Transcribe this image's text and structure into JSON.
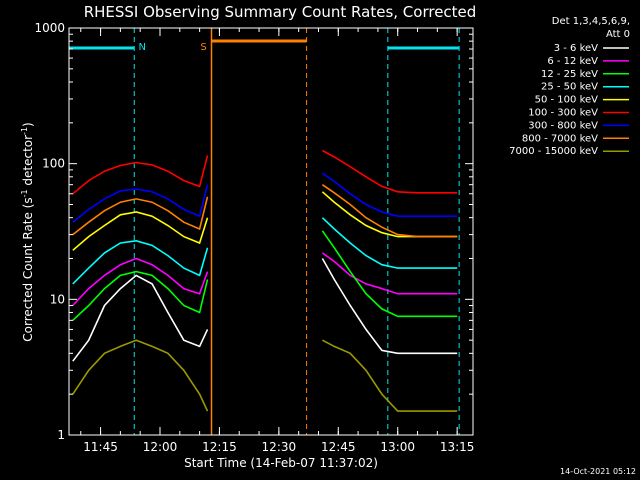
{
  "chart_data": {
    "type": "line",
    "title": "RHESSI Observing Summary Count Rates, Corrected",
    "xlabel": "Start Time (14-Feb-07 11:37:02)",
    "ylabel_main": "Corrected Count Rate (s",
    "ylabel_sup1": "-1",
    "ylabel_mid": " detector",
    "ylabel_sup2": "-1",
    "ylabel_end": ")",
    "y_scale": "log",
    "ylim": [
      1,
      1000
    ],
    "xlim": [
      "11:37:02",
      "13:19:00"
    ],
    "x_ticks": [
      "11:45",
      "12:00",
      "12:15",
      "12:30",
      "12:45",
      "13:00",
      "13:15"
    ],
    "y_ticks": [
      "1",
      "10",
      "100",
      "1000"
    ],
    "legend_title": "Det 1,3,4,5,6,9,",
    "legend_subtitle": "Att 0",
    "legend_position": "top-right",
    "footer_stamp": "14-Oct-2021 05:12",
    "gaps": [
      [
        "12:12:30",
        "12:41:00"
      ]
    ],
    "bars": [
      {
        "label": "N",
        "from": "11:37:02",
        "to": "11:53:30",
        "color": "#00e5ee",
        "kind": "night"
      },
      {
        "label": "",
        "from": "12:57:30",
        "to": "13:15:30",
        "color": "#00e5ee",
        "kind": "night"
      },
      {
        "label": "S",
        "from": "12:13:00",
        "to": "12:37:00",
        "color": "#ff7f00",
        "kind": "saa"
      }
    ],
    "series": [
      {
        "name": "3 - 6 keV",
        "color": "#ffffff",
        "x": [
          "11:38",
          "11:42",
          "11:46",
          "11:50",
          "11:54",
          "11:58",
          "12:02",
          "12:06",
          "12:10",
          "12:12",
          "12:41",
          "12:44",
          "12:48",
          "12:52",
          "12:56",
          "13:00",
          "13:05",
          "13:10",
          "13:15"
        ],
        "y": [
          3.5,
          5,
          9,
          12,
          15,
          13,
          8,
          5,
          4.5,
          6,
          20,
          14,
          9,
          6,
          4.2,
          4,
          4,
          4,
          4
        ]
      },
      {
        "name": "6 - 12 keV",
        "color": "#ff00ff",
        "x": [
          "11:38",
          "11:42",
          "11:46",
          "11:50",
          "11:54",
          "11:58",
          "12:02",
          "12:06",
          "12:10",
          "12:12",
          "12:41",
          "12:44",
          "12:48",
          "12:52",
          "12:56",
          "13:00",
          "13:05",
          "13:10",
          "13:15"
        ],
        "y": [
          9,
          12,
          15,
          18,
          20,
          18,
          15,
          12,
          11,
          16,
          22,
          19,
          15,
          13,
          12,
          11,
          11,
          11,
          11
        ]
      },
      {
        "name": "12 - 25 keV",
        "color": "#00ff00",
        "x": [
          "11:38",
          "11:42",
          "11:46",
          "11:50",
          "11:54",
          "11:58",
          "12:02",
          "12:06",
          "12:10",
          "12:12",
          "12:41",
          "12:44",
          "12:48",
          "12:52",
          "12:56",
          "13:00",
          "13:05",
          "13:10",
          "13:15"
        ],
        "y": [
          7,
          9,
          12,
          15,
          16,
          15,
          12,
          9,
          8,
          14,
          32,
          24,
          16,
          11,
          8.5,
          7.5,
          7.5,
          7.5,
          7.5
        ]
      },
      {
        "name": "25 - 50 keV",
        "color": "#00ffff",
        "x": [
          "11:38",
          "11:42",
          "11:46",
          "11:50",
          "11:54",
          "11:58",
          "12:02",
          "12:06",
          "12:10",
          "12:12",
          "12:41",
          "12:44",
          "12:48",
          "12:52",
          "12:56",
          "13:00",
          "13:05",
          "13:10",
          "13:15"
        ],
        "y": [
          13,
          17,
          22,
          26,
          27,
          25,
          21,
          17,
          15,
          24,
          40,
          33,
          26,
          21,
          18,
          17,
          17,
          17,
          17
        ]
      },
      {
        "name": "50 - 100 keV",
        "color": "#ffff00",
        "x": [
          "11:38",
          "11:42",
          "11:46",
          "11:50",
          "11:54",
          "11:58",
          "12:02",
          "12:06",
          "12:10",
          "12:12",
          "12:41",
          "12:44",
          "12:48",
          "12:52",
          "12:56",
          "13:00",
          "13:05",
          "13:10",
          "13:15"
        ],
        "y": [
          23,
          29,
          35,
          42,
          44,
          41,
          35,
          29,
          26,
          40,
          62,
          52,
          42,
          35,
          31,
          29,
          29,
          29,
          29
        ]
      },
      {
        "name": "100 - 300 keV",
        "color": "#ff0000",
        "x": [
          "11:38",
          "11:42",
          "11:46",
          "11:50",
          "11:54",
          "11:58",
          "12:02",
          "12:06",
          "12:10",
          "12:12",
          "12:41",
          "12:44",
          "12:48",
          "12:52",
          "12:56",
          "13:00",
          "13:05",
          "13:10",
          "13:15"
        ],
        "y": [
          60,
          75,
          88,
          97,
          102,
          98,
          88,
          75,
          68,
          115,
          125,
          112,
          95,
          80,
          68,
          62,
          61,
          61,
          61
        ]
      },
      {
        "name": "300 - 800 keV",
        "color": "#0000ff",
        "x": [
          "11:38",
          "11:42",
          "11:46",
          "11:50",
          "11:54",
          "11:58",
          "12:02",
          "12:06",
          "12:10",
          "12:12",
          "12:41",
          "12:44",
          "12:48",
          "12:52",
          "12:56",
          "13:00",
          "13:05",
          "13:10",
          "13:15"
        ],
        "y": [
          37,
          46,
          55,
          63,
          65,
          62,
          55,
          46,
          41,
          70,
          85,
          74,
          60,
          50,
          44,
          41,
          41,
          41,
          41
        ]
      },
      {
        "name": "800 - 7000 keV",
        "color": "#ff7f00",
        "x": [
          "11:38",
          "11:42",
          "11:46",
          "11:50",
          "11:54",
          "11:58",
          "12:02",
          "12:06",
          "12:10",
          "12:12",
          "12:41",
          "12:44",
          "12:48",
          "12:52",
          "12:56",
          "13:00",
          "13:05",
          "13:10",
          "13:15"
        ],
        "y": [
          30,
          37,
          45,
          52,
          55,
          52,
          45,
          37,
          33,
          57,
          70,
          61,
          50,
          40,
          34,
          30,
          29,
          29,
          29
        ]
      },
      {
        "name": "7000 - 15000 keV",
        "color": "#999900",
        "x": [
          "11:38",
          "11:42",
          "11:46",
          "11:50",
          "11:54",
          "11:58",
          "12:02",
          "12:06",
          "12:10",
          "12:12",
          "12:41",
          "12:44",
          "12:48",
          "12:52",
          "12:56",
          "13:00",
          "13:05",
          "13:10",
          "13:15"
        ],
        "y": [
          2,
          3,
          4,
          4.5,
          5,
          4.5,
          4,
          3,
          2,
          1.5,
          5,
          4.5,
          4,
          3,
          2,
          1.5,
          1.5,
          1.5,
          1.5
        ]
      }
    ]
  }
}
